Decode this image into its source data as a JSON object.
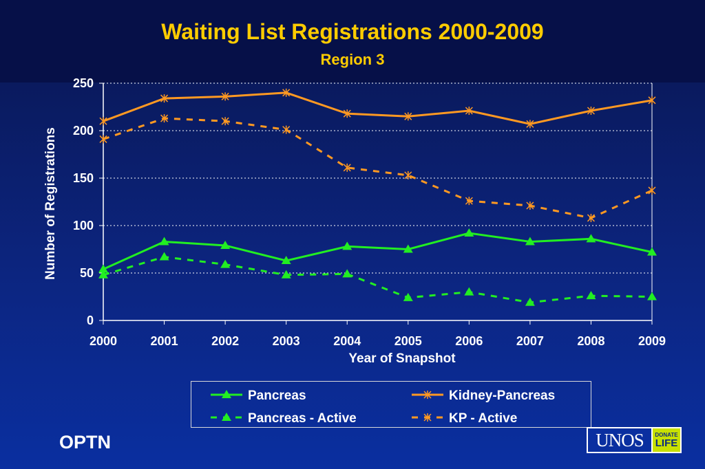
{
  "slide": {
    "title": "Waiting List Registrations 2000-2009",
    "subtitle": "Region 3",
    "footer_left": "OPTN",
    "logo": {
      "main": "UNOS",
      "badge_line1": "DONATE",
      "badge_line2": "LIFE"
    }
  },
  "colors": {
    "title": "#ffcc00",
    "pancreas": "#22ee22",
    "kidney_pancreas": "#ff9922",
    "grid": "#ffffff",
    "text": "#ffffff"
  },
  "chart_data": {
    "type": "line",
    "title": "Waiting List Registrations 2000-2009",
    "subtitle": "Region 3",
    "xlabel": "Year of Snapshot",
    "ylabel": "Number of Registrations",
    "ylim": [
      0,
      250
    ],
    "yticks": [
      0,
      50,
      100,
      150,
      200,
      250
    ],
    "categories": [
      "2000",
      "2001",
      "2002",
      "2003",
      "2004",
      "2005",
      "2006",
      "2007",
      "2008",
      "2009"
    ],
    "grid": "horizontal dotted",
    "legend_position": "bottom",
    "series": [
      {
        "name": "Pancreas",
        "color": "#22ee22",
        "marker": "triangle",
        "dash": "solid",
        "values": [
          54,
          83,
          79,
          63,
          78,
          75,
          92,
          83,
          86,
          72
        ]
      },
      {
        "name": "Kidney-Pancreas",
        "color": "#ff9922",
        "marker": "star",
        "dash": "solid",
        "values": [
          210,
          234,
          236,
          240,
          218,
          215,
          221,
          207,
          221,
          232
        ]
      },
      {
        "name": "Pancreas - Active",
        "color": "#22ee22",
        "marker": "triangle",
        "dash": "dashed",
        "values": [
          48,
          67,
          59,
          48,
          49,
          24,
          30,
          19,
          26,
          25
        ]
      },
      {
        "name": "KP - Active",
        "color": "#ff9922",
        "marker": "star",
        "dash": "dashed",
        "values": [
          191,
          213,
          210,
          201,
          161,
          153,
          126,
          121,
          108,
          137
        ]
      }
    ]
  }
}
